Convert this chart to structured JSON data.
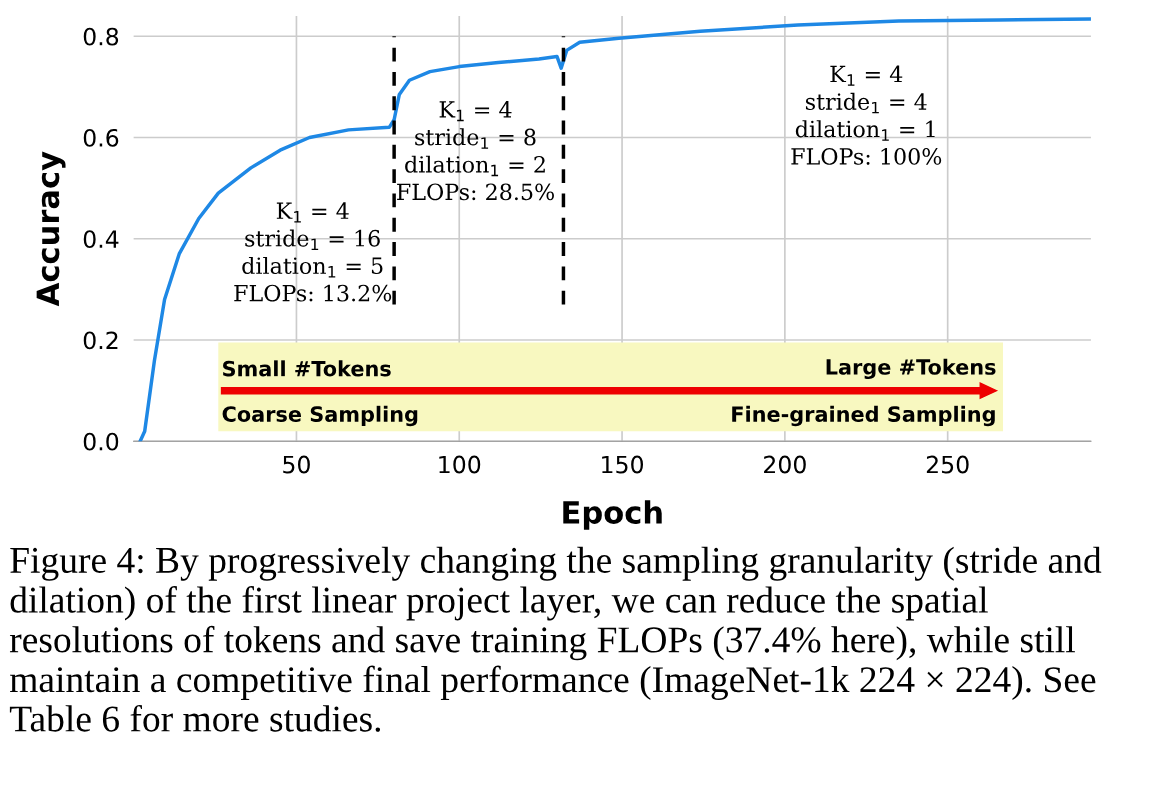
{
  "chart_data": {
    "type": "line",
    "xlabel": "Epoch",
    "ylabel": "Accuracy",
    "xlim": [
      0,
      294
    ],
    "ylim": [
      0,
      0.84
    ],
    "xticks": [
      50,
      100,
      150,
      200,
      250
    ],
    "yticks": [
      {
        "value": 0,
        "label": "0.0"
      },
      0.2,
      0.4,
      0.6,
      0.8
    ],
    "grid": true,
    "legend": false,
    "series": [
      {
        "color": "#1e88e5",
        "line_style": "solid",
        "x": [
          2,
          3.4,
          6.4,
          9.5,
          14,
          20,
          26,
          36,
          45,
          54,
          66,
          78.5,
          80,
          81.6,
          84.7,
          91,
          100,
          112,
          124.5,
          130,
          131.3,
          133,
          137,
          149,
          174,
          204,
          235,
          265.6,
          293.6
        ],
        "values": [
          0.0,
          0.02,
          0.16,
          0.28,
          0.37,
          0.44,
          0.49,
          0.54,
          0.575,
          0.6,
          0.615,
          0.62,
          0.635,
          0.685,
          0.713,
          0.73,
          0.74,
          0.748,
          0.755,
          0.76,
          0.737,
          0.772,
          0.788,
          0.796,
          0.81,
          0.822,
          0.83,
          0.832,
          0.834
        ]
      },
      {
        "color": "#000000",
        "line_style": "dashed",
        "x": [
          80,
          80
        ],
        "values": [
          0.27,
          0.8
        ]
      },
      {
        "color": "#000000",
        "line_style": "dashed",
        "x": [
          132,
          132
        ],
        "values": [
          0.27,
          0.8
        ]
      }
    ],
    "annotations": [
      "K$_{1}$ = 4\nstride$_{1}$ = 16\ndilation$_{1}$ = 5\nFLOPs: 13.2%",
      "K$_{1}$ = 4\nstride$_{1}$ = 8\ndilation$_{1}$ = 2\nFLOPs: 28.5%",
      "K$_{1}$ = 4\nstride$_{1}$ = 4\ndilation$_{1}$ = 1\nFLOPs: 100%",
      "Small #Tokens",
      "Large #Tokens",
      "Coarse Sampling",
      "Fine-grained Sampling",
      "Figure 4: By progressively changing the sampling granularity (stride and dilation) of the first linear project layer, we can reduce the spatial resolutions of tokens and save training FLOPs (37.4% here), while still maintain a competitive final performance (ImageNet-1k 224 × 224). See Table 6 for more studies."
    ]
  }
}
